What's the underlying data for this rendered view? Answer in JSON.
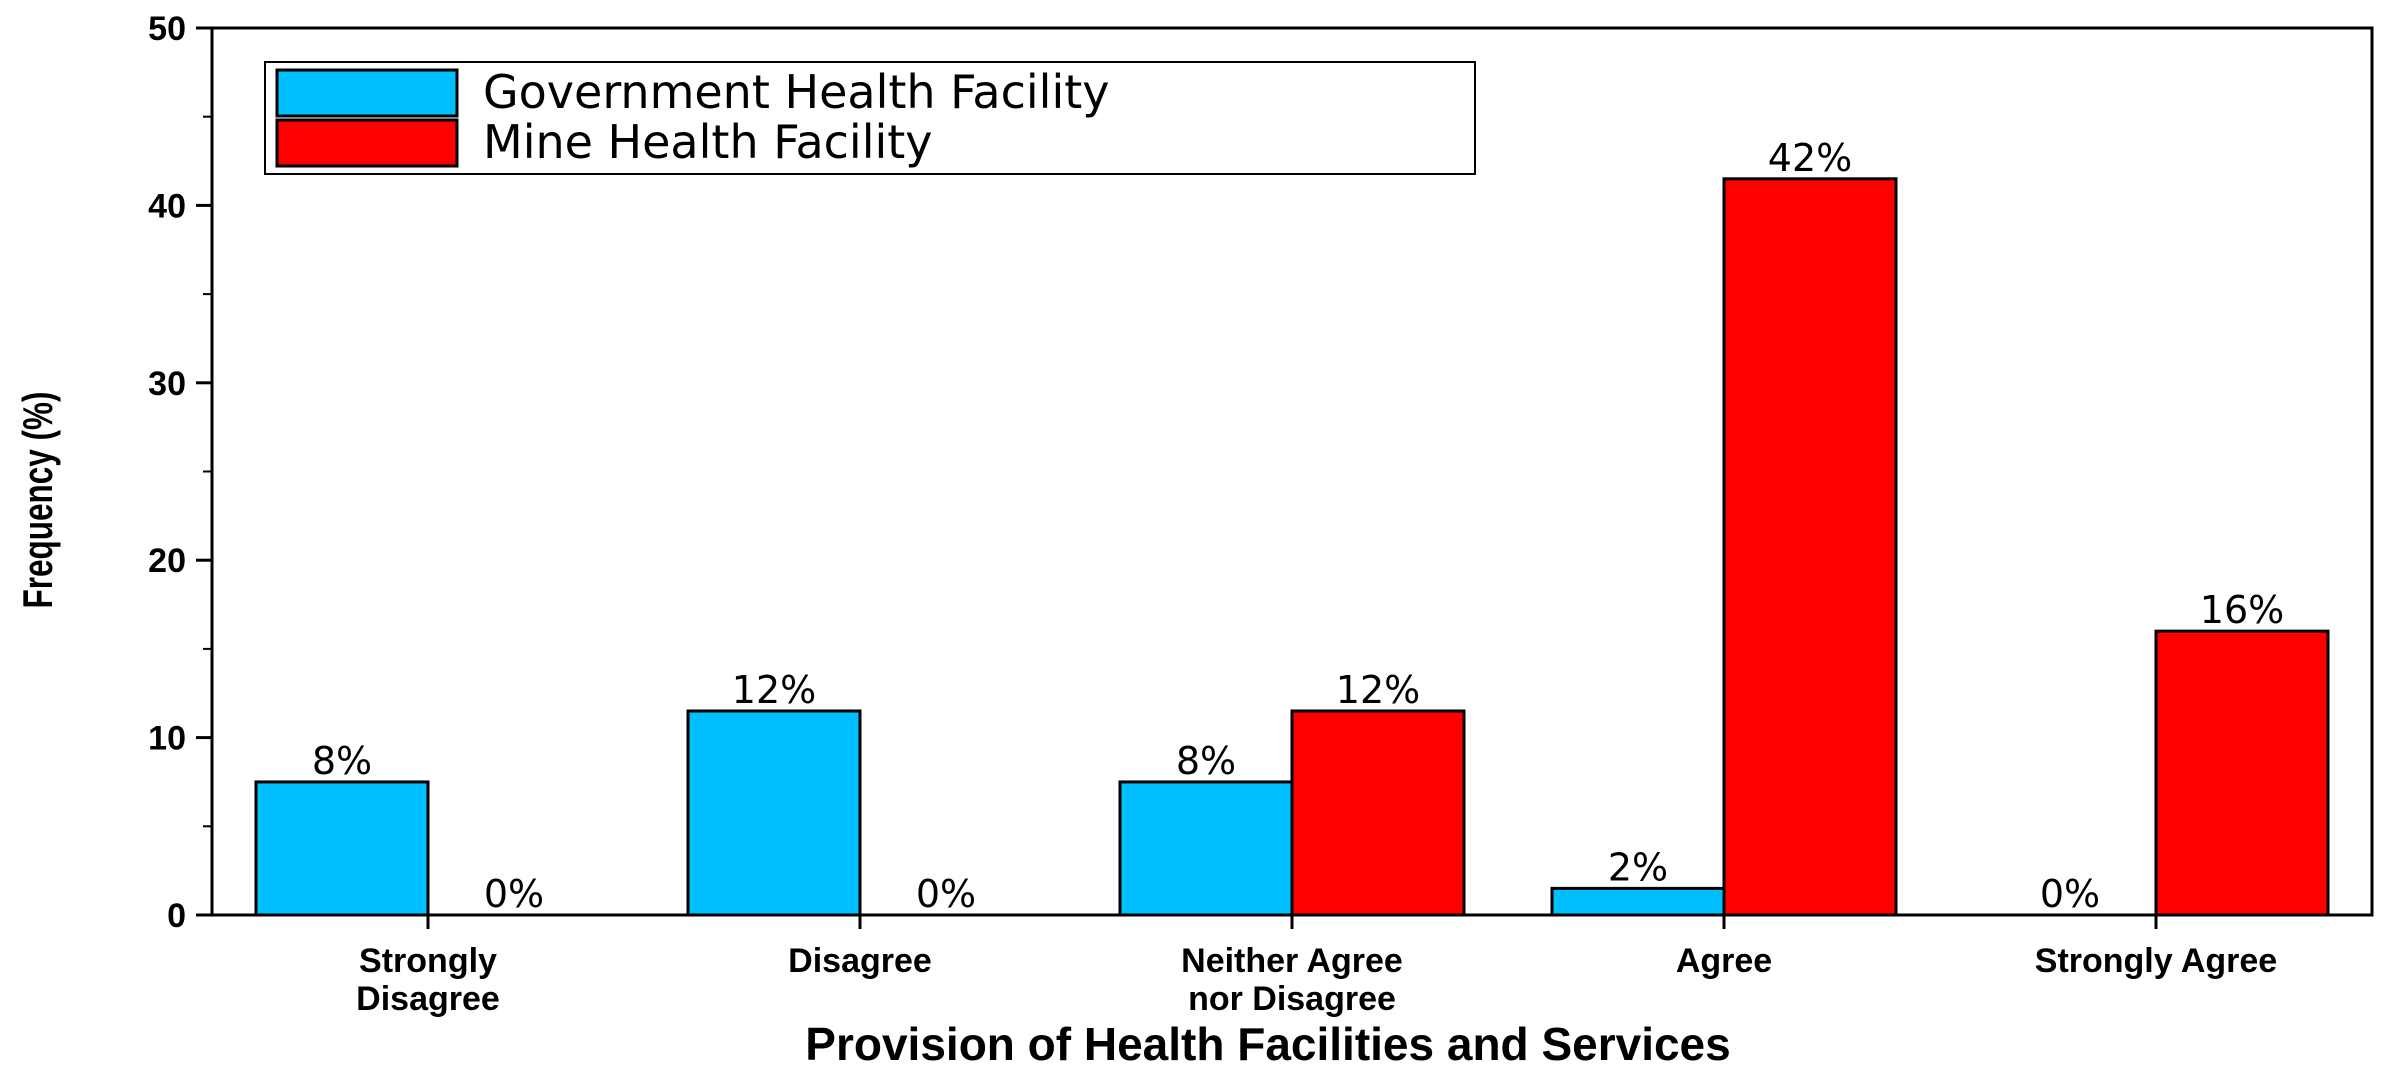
{
  "chart_data": {
    "type": "bar",
    "title": "",
    "xlabel": "Provision of Health Facilities and Services",
    "ylabel": "Frequency (%)",
    "ylim": [
      0,
      50
    ],
    "yticks": [
      0,
      10,
      20,
      30,
      40,
      50
    ],
    "legend_position": "top-left",
    "categories": [
      [
        "Strongly",
        "Disagree"
      ],
      [
        "Disagree"
      ],
      [
        "Neither Agree",
        "nor Disagree"
      ],
      [
        "Agree"
      ],
      [
        "Strongly Agree"
      ]
    ],
    "series": [
      {
        "name": "Government Health Facility",
        "color": "#00BFFF",
        "values": [
          7.5,
          11.5,
          7.5,
          1.5,
          0
        ],
        "labels": [
          "8%",
          "12%",
          "8%",
          "2%",
          "0%"
        ]
      },
      {
        "name": "Mine Health Facility",
        "color": "#FF0000",
        "values": [
          0,
          0,
          11.5,
          41.5,
          16
        ],
        "labels": [
          "0%",
          "0%",
          "12%",
          "42%",
          "16%"
        ]
      }
    ]
  }
}
